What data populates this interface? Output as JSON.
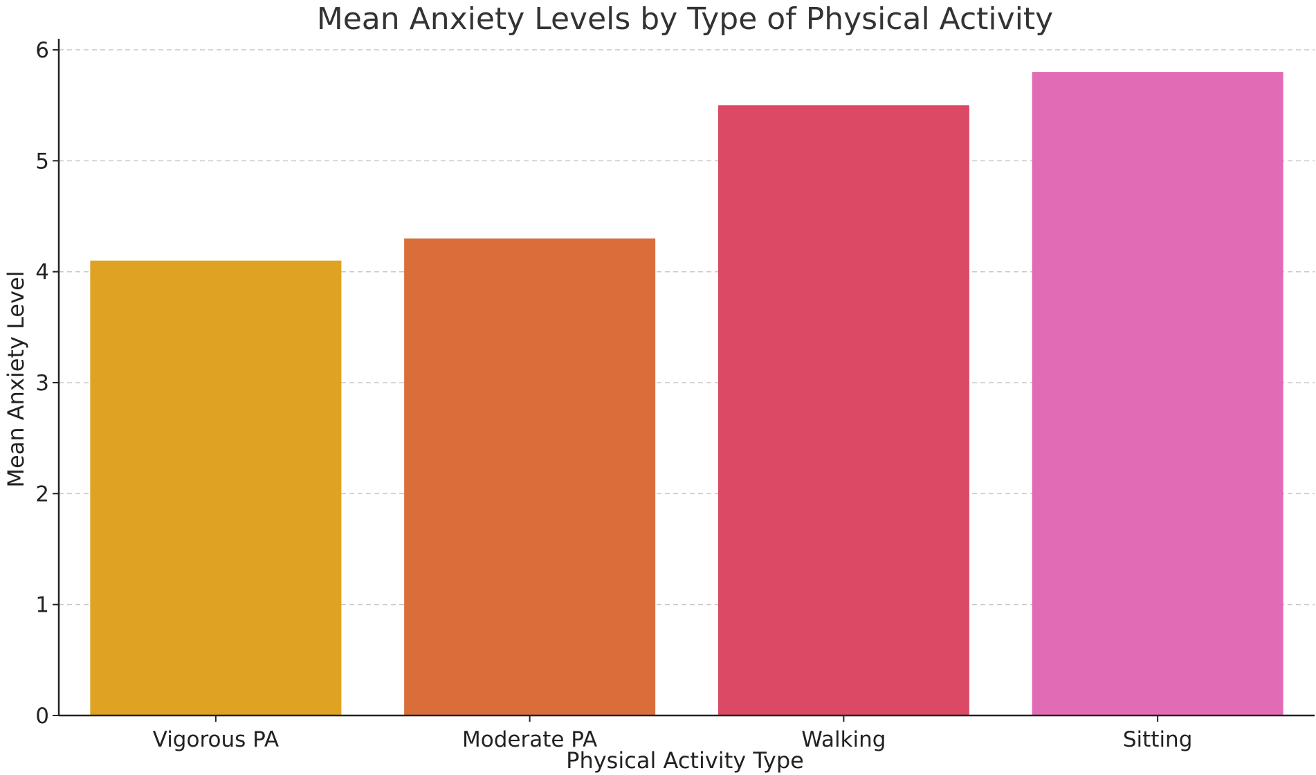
{
  "chart_data": {
    "type": "bar",
    "title": "Mean Anxiety Levels by Type of Physical Activity",
    "xlabel": "Physical Activity Type",
    "ylabel": "Mean Anxiety Level",
    "categories": [
      "Vigorous PA",
      "Moderate PA",
      "Walking",
      "Sitting"
    ],
    "values": [
      4.1,
      4.3,
      5.5,
      5.8
    ],
    "colors": [
      "#dfa222",
      "#d96e3b",
      "#db4964",
      "#e26bb6"
    ],
    "ylim": [
      0,
      6.1
    ],
    "yticks": [
      0,
      1,
      2,
      3,
      4,
      5,
      6
    ],
    "grid": "horizontal-dashed",
    "legend": "none"
  }
}
